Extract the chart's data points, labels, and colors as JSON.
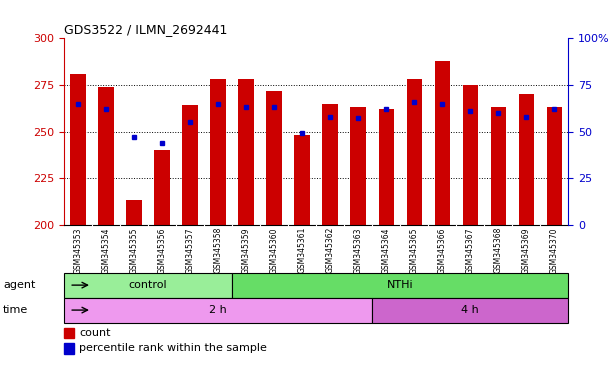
{
  "title": "GDS3522 / ILMN_2692441",
  "samples": [
    "GSM345353",
    "GSM345354",
    "GSM345355",
    "GSM345356",
    "GSM345357",
    "GSM345358",
    "GSM345359",
    "GSM345360",
    "GSM345361",
    "GSM345362",
    "GSM345363",
    "GSM345364",
    "GSM345365",
    "GSM345366",
    "GSM345367",
    "GSM345368",
    "GSM345369",
    "GSM345370"
  ],
  "count_values": [
    281,
    274,
    213,
    240,
    264,
    278,
    278,
    272,
    248,
    265,
    263,
    262,
    278,
    288,
    275,
    263,
    270,
    263
  ],
  "percentile_values": [
    65,
    62,
    47,
    44,
    55,
    65,
    63,
    63,
    49,
    58,
    57,
    62,
    66,
    65,
    61,
    60,
    58,
    62
  ],
  "ymin": 200,
  "ymax": 300,
  "yticks_left": [
    200,
    225,
    250,
    275,
    300
  ],
  "yticks_right": [
    0,
    25,
    50,
    75,
    100
  ],
  "bar_color": "#cc0000",
  "dot_color": "#0000cc",
  "agent_groups": [
    {
      "label": "control",
      "start": 0,
      "end": 6,
      "color": "#99ee99"
    },
    {
      "label": "NTHi",
      "start": 6,
      "end": 18,
      "color": "#66dd66"
    }
  ],
  "time_groups": [
    {
      "label": "2 h",
      "start": 0,
      "end": 11,
      "color": "#ee99ee"
    },
    {
      "label": "4 h",
      "start": 11,
      "end": 18,
      "color": "#cc66cc"
    }
  ],
  "left_axis_color": "#cc0000",
  "right_axis_color": "#0000cc",
  "gridline_ticks": [
    225,
    250,
    275
  ]
}
